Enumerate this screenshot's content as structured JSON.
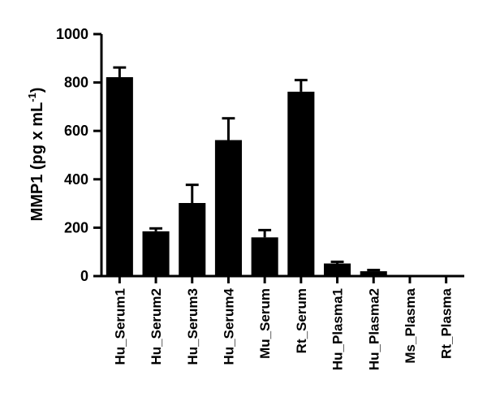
{
  "chart_data": {
    "type": "bar",
    "categories": [
      "Hu_Serum1",
      "Hu_Serum2",
      "Hu_Serum3",
      "Hu_Serum4",
      "Mu_Serum",
      "Rt_Serum",
      "Hu_Plasma1",
      "Hu_Plasma2",
      "Ms_Plasma",
      "Rt_Plasma"
    ],
    "values": [
      822,
      185,
      302,
      562,
      160,
      762,
      52,
      20,
      0,
      0
    ],
    "errors": [
      40,
      12,
      75,
      90,
      30,
      48,
      7,
      5,
      0,
      0
    ],
    "ylabel": {
      "main": "MMP1 (pg x mL",
      "sup": "-1",
      "close": ")"
    },
    "ylim": [
      0,
      1000
    ],
    "yticks": [
      0,
      200,
      400,
      600,
      800,
      1000
    ],
    "bar_color": "#000000",
    "grid": false,
    "legend": "none"
  }
}
